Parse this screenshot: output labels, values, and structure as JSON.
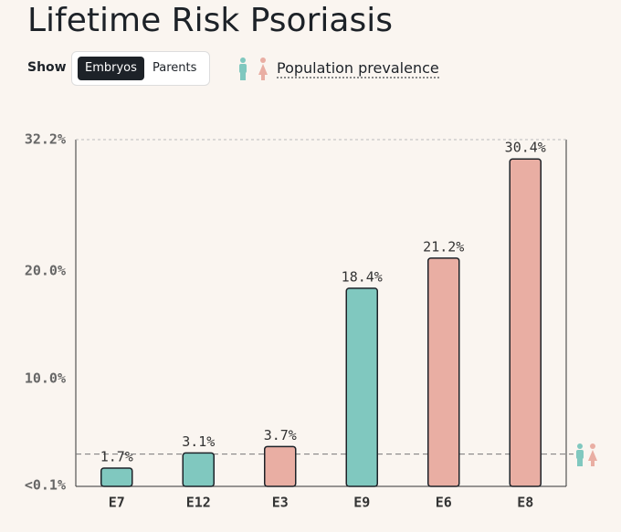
{
  "controls": {
    "show_label": "Show",
    "options": [
      "Embryos",
      "Parents"
    ],
    "selected": 0,
    "legend_link": "Population prevalence"
  },
  "chart_data": {
    "type": "bar",
    "title": "Lifetime Risk Psoriasis",
    "categories": [
      "E7",
      "E12",
      "E3",
      "E9",
      "E6",
      "E8"
    ],
    "values": [
      1.7,
      3.1,
      3.7,
      18.4,
      21.2,
      30.4
    ],
    "value_labels": [
      "1.7%",
      "3.1%",
      "3.7%",
      "18.4%",
      "21.2%",
      "30.4%"
    ],
    "colors": [
      "#80c8bf",
      "#80c8bf",
      "#e9aea3",
      "#80c8bf",
      "#e9aea3",
      "#e9aea3"
    ],
    "ylim": [
      0,
      32.2
    ],
    "yticks": [
      {
        "value": 0.1,
        "label": "<0.1%"
      },
      {
        "value": 10,
        "label": "10.0%"
      },
      {
        "value": 20,
        "label": "20.0%"
      },
      {
        "value": 32.2,
        "label": "32.2%"
      }
    ],
    "prevalence": 3
  }
}
